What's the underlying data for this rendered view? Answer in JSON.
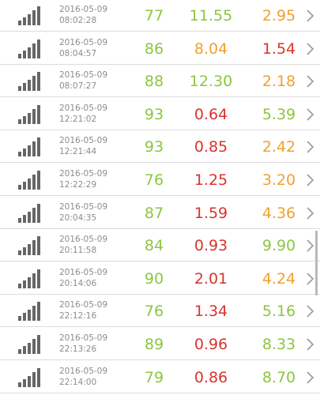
{
  "colors": {
    "green": "#8cc63f",
    "orange": "#f0a030",
    "red": "#d9342b",
    "meta": "#8c8c8c",
    "icon": "#666666",
    "chevron": "#9a9a9a"
  },
  "icons": {
    "row_icon": "signal-bars-icon",
    "row_action": "chevron-right-icon"
  },
  "records": [
    {
      "date": "2016-05-09",
      "time": "08:02:28",
      "signal": "77",
      "signal_color": "green",
      "a": "11.55",
      "a_color": "green",
      "b": "2.95",
      "b_color": "orange"
    },
    {
      "date": "2016-05-09",
      "time": "08:04:57",
      "signal": "86",
      "signal_color": "green",
      "a": "8.04",
      "a_color": "orange",
      "b": "1.54",
      "b_color": "red"
    },
    {
      "date": "2016-05-09",
      "time": "08:07:27",
      "signal": "88",
      "signal_color": "green",
      "a": "12.30",
      "a_color": "green",
      "b": "2.18",
      "b_color": "orange"
    },
    {
      "date": "2016-05-09",
      "time": "12:21:02",
      "signal": "93",
      "signal_color": "green",
      "a": "0.64",
      "a_color": "red",
      "b": "5.39",
      "b_color": "green"
    },
    {
      "date": "2016-05-09",
      "time": "12:21:44",
      "signal": "93",
      "signal_color": "green",
      "a": "0.85",
      "a_color": "red",
      "b": "2.42",
      "b_color": "orange"
    },
    {
      "date": "2016-05-09",
      "time": "12:22:29",
      "signal": "76",
      "signal_color": "green",
      "a": "1.25",
      "a_color": "red",
      "b": "3.20",
      "b_color": "orange"
    },
    {
      "date": "2016-05-09",
      "time": "20:04:35",
      "signal": "87",
      "signal_color": "green",
      "a": "1.59",
      "a_color": "red",
      "b": "4.36",
      "b_color": "orange"
    },
    {
      "date": "2016-05-09",
      "time": "20:11:58",
      "signal": "84",
      "signal_color": "green",
      "a": "0.93",
      "a_color": "red",
      "b": "9.90",
      "b_color": "green"
    },
    {
      "date": "2016-05-09",
      "time": "20:14:06",
      "signal": "90",
      "signal_color": "green",
      "a": "2.01",
      "a_color": "red",
      "b": "4.24",
      "b_color": "orange"
    },
    {
      "date": "2016-05-09",
      "time": "22:12:16",
      "signal": "76",
      "signal_color": "green",
      "a": "1.34",
      "a_color": "red",
      "b": "5.16",
      "b_color": "green"
    },
    {
      "date": "2016-05-09",
      "time": "22:13:26",
      "signal": "89",
      "signal_color": "green",
      "a": "0.96",
      "a_color": "red",
      "b": "8.33",
      "b_color": "green"
    },
    {
      "date": "2016-05-09",
      "time": "22:14:00",
      "signal": "79",
      "signal_color": "green",
      "a": "0.86",
      "a_color": "red",
      "b": "8.70",
      "b_color": "green"
    }
  ]
}
